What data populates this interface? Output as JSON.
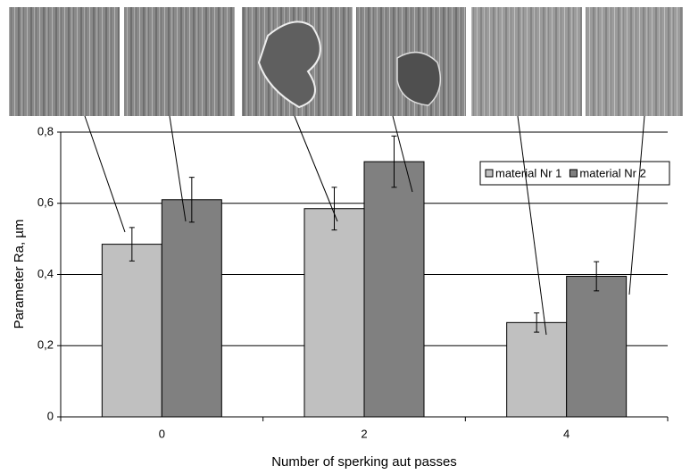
{
  "chart_data": {
    "type": "bar",
    "x_label": "Number of sperking aut passes",
    "y_label": "Parameter Ra, µm",
    "categories": [
      "0",
      "2",
      "4"
    ],
    "series": [
      {
        "name": "material Nr 1",
        "color": "#c0c0c0",
        "values": [
          0.485,
          0.585,
          0.265
        ],
        "errors": [
          0.047,
          0.06,
          0.027
        ]
      },
      {
        "name": "material Nr 2",
        "color": "#808080",
        "values": [
          0.61,
          0.717,
          0.395
        ],
        "errors": [
          0.063,
          0.072,
          0.041
        ]
      }
    ],
    "ylim": [
      0,
      0.8
    ],
    "yticks": [
      {
        "value": 0,
        "label": "0"
      },
      {
        "value": 0.2,
        "label": "0,2"
      },
      {
        "value": 0.4,
        "label": "0,4"
      },
      {
        "value": 0.6,
        "label": "0,6"
      },
      {
        "value": 0.8,
        "label": "0,8"
      }
    ],
    "grid": true,
    "legend": "upper-right"
  }
}
